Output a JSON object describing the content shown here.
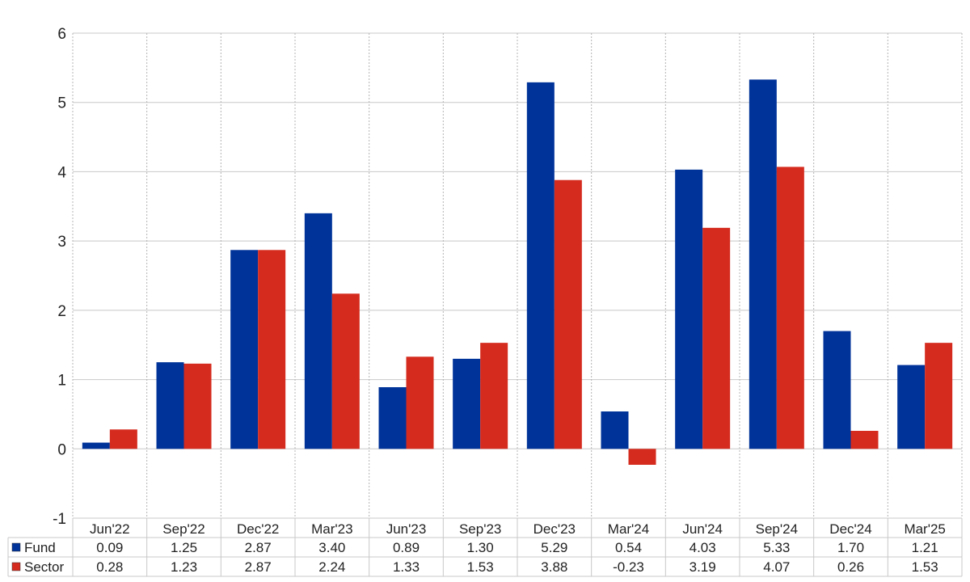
{
  "chart_data": {
    "type": "bar",
    "categories": [
      "Jun'22",
      "Sep'22",
      "Dec'22",
      "Mar'23",
      "Jun'23",
      "Sep'23",
      "Dec'23",
      "Mar'24",
      "Jun'24",
      "Sep'24",
      "Dec'24",
      "Mar'25"
    ],
    "series": [
      {
        "name": "Fund",
        "color": "#003399",
        "values": [
          0.09,
          1.25,
          2.87,
          3.4,
          0.89,
          1.3,
          5.29,
          0.54,
          4.03,
          5.33,
          1.7,
          1.21
        ],
        "labels": [
          "0.09",
          "1.25",
          "2.87",
          "3.40",
          "0.89",
          "1.30",
          "5.29",
          "0.54",
          "4.03",
          "5.33",
          "1.70",
          "1.21"
        ]
      },
      {
        "name": "Sector",
        "color": "#d52b1e",
        "values": [
          0.28,
          1.23,
          2.87,
          2.24,
          1.33,
          1.53,
          3.88,
          -0.23,
          3.19,
          4.07,
          0.26,
          1.53
        ],
        "labels": [
          "0.28",
          "1.23",
          "2.87",
          "2.24",
          "1.33",
          "1.53",
          "3.88",
          "-0.23",
          "3.19",
          "4.07",
          "0.26",
          "1.53"
        ]
      }
    ],
    "negative_label_color": "#ff0000",
    "ylim": [
      -1,
      6
    ],
    "yticks": [
      "-1",
      "0",
      "1",
      "2",
      "3",
      "4",
      "5",
      "6"
    ],
    "grid": true,
    "data_table": true
  }
}
